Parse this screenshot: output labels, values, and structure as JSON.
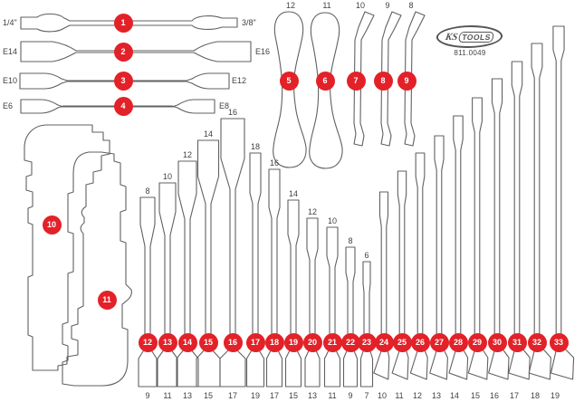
{
  "colors": {
    "accent_red": "#e32128",
    "outline_gray": "#616161",
    "label_gray": "#3f3f3f"
  },
  "brand": {
    "logo_ks": "KS",
    "logo_tools": "TOOLS",
    "part_number": "811.0049"
  },
  "socket_adapters": [
    {
      "num": "1",
      "left": "1/4\"",
      "right": "3/8\""
    },
    {
      "num": "2",
      "left": "E14",
      "right": "E16"
    },
    {
      "num": "3",
      "num_note": "",
      "left": "E10",
      "right": "E12"
    },
    {
      "num": "4",
      "left": "E6",
      "right": "E8"
    }
  ],
  "pry_levers": [
    {
      "num": "5",
      "size": "12"
    },
    {
      "num": "6",
      "size": "11"
    }
  ],
  "hook_levers": [
    {
      "num": "7",
      "size": "10"
    },
    {
      "num": "8",
      "size": "9"
    },
    {
      "num": "9",
      "size": "8"
    }
  ],
  "template_shapes": [
    {
      "num": "10"
    },
    {
      "num": "11"
    }
  ],
  "flare_wrenches": [
    {
      "num": "12",
      "top_size": "8",
      "bottom_size": "9"
    },
    {
      "num": "13",
      "top_size": "10",
      "bottom_size": "11"
    },
    {
      "num": "14",
      "top_size": "12",
      "bottom_size": "13"
    },
    {
      "num": "15",
      "top_size": "14",
      "bottom_size": "15"
    },
    {
      "num": "16",
      "top_size": "16",
      "bottom_size": "17"
    },
    {
      "num": "17",
      "top_size": "18",
      "bottom_size": "19"
    },
    {
      "num": "18",
      "top_size": "16",
      "bottom_size": "17"
    },
    {
      "num": "19",
      "top_size": "14",
      "bottom_size": "15"
    },
    {
      "num": "20",
      "top_size": "12",
      "bottom_size": "13"
    },
    {
      "num": "21",
      "top_size": "10",
      "bottom_size": "11"
    },
    {
      "num": "22",
      "top_size": "8",
      "bottom_size": "9"
    },
    {
      "num": "23",
      "top_size": "6",
      "bottom_size": "7"
    }
  ],
  "open_end_wrenches": [
    {
      "num": "24",
      "bottom_size": "10"
    },
    {
      "num": "25",
      "bottom_size": "11"
    },
    {
      "num": "26",
      "bottom_size": "12"
    },
    {
      "num": "27",
      "bottom_size": "13"
    },
    {
      "num": "28",
      "bottom_size": "14"
    },
    {
      "num": "29",
      "bottom_size": "15"
    },
    {
      "num": "30",
      "bottom_size": "16"
    },
    {
      "num": "31",
      "bottom_size": "17"
    },
    {
      "num": "32",
      "bottom_size": "18"
    },
    {
      "num": "33",
      "bottom_size": "19"
    }
  ]
}
